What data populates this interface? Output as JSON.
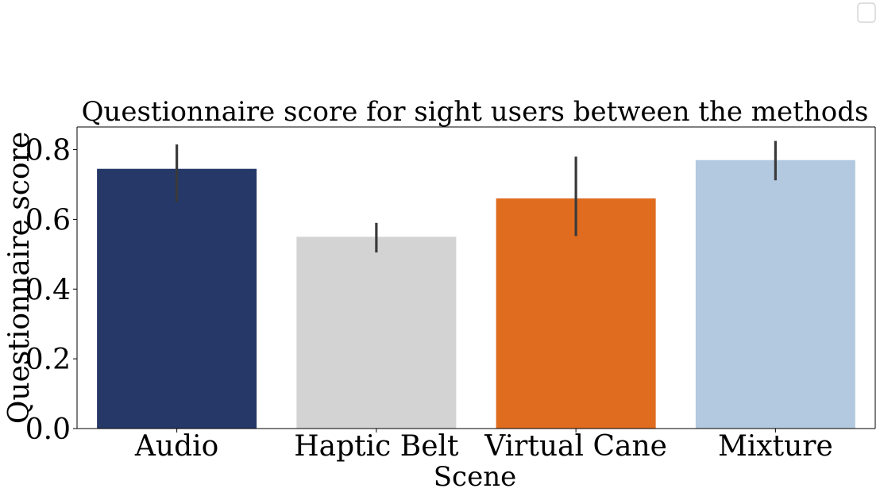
{
  "chart_data": {
    "type": "bar",
    "title": "Questionnaire score for sight users between the methods",
    "xlabel": "Scene",
    "ylabel": "Questionnaire score",
    "categories": [
      "Audio",
      "Haptic Belt",
      "Virtual Cane",
      "Mixture"
    ],
    "values": [
      0.745,
      0.55,
      0.66,
      0.77
    ],
    "error_low": [
      0.65,
      0.505,
      0.552,
      0.712
    ],
    "error_high": [
      0.815,
      0.59,
      0.78,
      0.825
    ],
    "bar_colors": [
      "#253868",
      "#d3d3d3",
      "#e06c20",
      "#b2c9e0"
    ],
    "error_color": "#3a3a3a",
    "ylim": [
      0,
      0.865
    ],
    "yticks": [
      0.0,
      0.2,
      0.4,
      0.6,
      0.8
    ],
    "ytick_labels": [
      "0.0",
      "0.2",
      "0.4",
      "0.6",
      "0.8"
    ],
    "grid": false,
    "legend": {
      "position": "top-right",
      "entries": []
    }
  }
}
